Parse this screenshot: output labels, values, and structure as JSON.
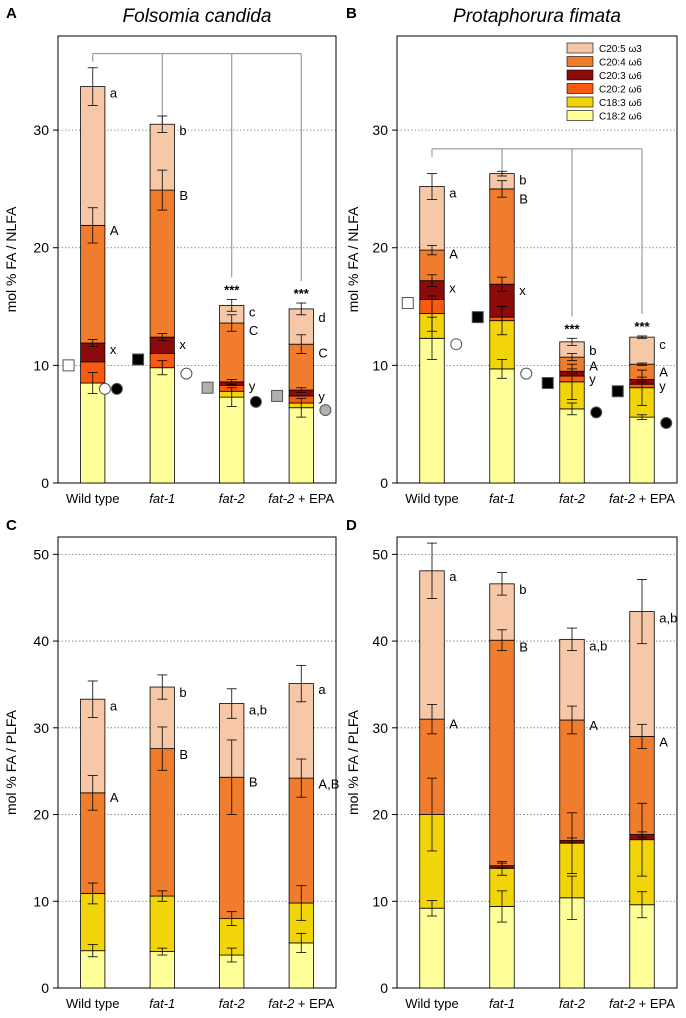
{
  "colors": {
    "C18:2": "#ffff99",
    "C18:3": "#f2d40a",
    "C20:2": "#f95a12",
    "C20:3": "#8b0a0a",
    "C20:4": "#ef7d2d",
    "C20:5": "#f6c8a8",
    "marker_white": "#ffffff",
    "marker_black": "#000000",
    "marker_grey": "#b0b0b0"
  },
  "legend": [
    {
      "key": "C20:5",
      "label": "C20:5 ω3"
    },
    {
      "key": "C20:4",
      "label": "C20:4 ω6"
    },
    {
      "key": "C20:3",
      "label": "C20:3 ω6"
    },
    {
      "key": "C20:2",
      "label": "C20:2 ω6"
    },
    {
      "key": "C18:3",
      "label": "C18:3 ω6"
    },
    {
      "key": "C18:2",
      "label": "C18:2 ω6"
    }
  ],
  "chart_data": [
    {
      "panel": "A",
      "type": "bar",
      "stacked": true,
      "title": "Folsomia candida",
      "ylabel": "mol % FA / NLFA",
      "ylim": [
        0,
        38
      ],
      "yticks": [
        0,
        10,
        20,
        30
      ],
      "categories": [
        {
          "italic": "",
          "plain": "Wild type"
        },
        {
          "italic": "fat-1",
          "plain": ""
        },
        {
          "italic": "fat-2",
          "plain": ""
        },
        {
          "italic": "fat-2",
          "plain": " + EPA"
        }
      ],
      "series": [
        {
          "name": "C18:2",
          "values": [
            8.5,
            9.8,
            7.3,
            6.4
          ],
          "errors": [
            0.9,
            0.6,
            0.8,
            0.8
          ]
        },
        {
          "name": "C18:3",
          "values": [
            0,
            0,
            0.5,
            0.4
          ],
          "errors": [
            0,
            0,
            0,
            0
          ]
        },
        {
          "name": "C20:2",
          "values": [
            1.8,
            1.2,
            0.5,
            0.6
          ],
          "errors": [
            0,
            0,
            0,
            0
          ]
        },
        {
          "name": "C20:3",
          "values": [
            1.6,
            1.4,
            0.3,
            0.5
          ],
          "errors": [
            0.3,
            0.3,
            0.2,
            0.2
          ]
        },
        {
          "name": "C20:4",
          "values": [
            10.0,
            12.5,
            5.0,
            3.9
          ],
          "errors": [
            1.5,
            1.7,
            0.7,
            0.8
          ]
        },
        {
          "name": "C20:5",
          "values": [
            11.8,
            5.6,
            1.5,
            3.0
          ],
          "errors": [
            1.6,
            0.7,
            0.5,
            0.5
          ]
        }
      ],
      "letters": [
        [
          {
            "t": "a",
            "y": 33.2
          },
          {
            "t": "A",
            "y": 21.5
          },
          {
            "t": "x",
            "y": 11.4
          }
        ],
        [
          {
            "t": "b",
            "y": 30.0
          },
          {
            "t": "B",
            "y": 24.5
          },
          {
            "t": "x",
            "y": 11.8
          }
        ],
        [
          {
            "t": "c",
            "y": 14.6
          },
          {
            "t": "C",
            "y": 13.0
          },
          {
            "t": "y",
            "y": 8.3
          }
        ],
        [
          {
            "t": "d",
            "y": 14.1
          },
          {
            "t": "C",
            "y": 11.1
          },
          {
            "t": "y",
            "y": 7.4
          }
        ]
      ],
      "stars": [
        "",
        "",
        "***",
        "***"
      ],
      "markers": [
        {
          "cat": 0,
          "side": "left",
          "shape": "square",
          "fill": "white",
          "y": 10.0
        },
        {
          "cat": 0,
          "side": "right",
          "shape": "circle",
          "fill": "white",
          "y": 8.0,
          "dx": -12
        },
        {
          "cat": 0,
          "side": "right",
          "shape": "circle",
          "fill": "black",
          "y": 8.0
        },
        {
          "cat": 1,
          "side": "left",
          "shape": "square",
          "fill": "black",
          "y": 10.5
        },
        {
          "cat": 1,
          "side": "right",
          "shape": "circle",
          "fill": "white",
          "y": 9.3
        },
        {
          "cat": 2,
          "side": "left",
          "shape": "square",
          "fill": "grey",
          "y": 8.1
        },
        {
          "cat": 2,
          "side": "right",
          "shape": "circle",
          "fill": "black",
          "y": 6.9
        },
        {
          "cat": 3,
          "side": "left",
          "shape": "square",
          "fill": "grey",
          "y": 7.4
        },
        {
          "cat": 3,
          "side": "right",
          "shape": "circle",
          "fill": "grey",
          "y": 6.2
        }
      ],
      "bracket": {
        "y": 36.5,
        "from": 0,
        "to": [
          1,
          2,
          3
        ]
      }
    },
    {
      "panel": "B",
      "type": "bar",
      "stacked": true,
      "title": "Protaphorura fimata",
      "ylabel": "mol % FA / NLFA",
      "ylim": [
        0,
        38
      ],
      "yticks": [
        0,
        10,
        20,
        30
      ],
      "show_legend": true,
      "categories": [
        {
          "italic": "",
          "plain": "Wild type"
        },
        {
          "italic": "fat-1",
          "plain": ""
        },
        {
          "italic": "fat-2",
          "plain": ""
        },
        {
          "italic": "fat-2",
          "plain": " + EPA"
        }
      ],
      "series": [
        {
          "name": "C18:2",
          "values": [
            12.3,
            9.7,
            6.3,
            5.6
          ],
          "errors": [
            1.8,
            0.8,
            0.5,
            0.2
          ]
        },
        {
          "name": "C18:3",
          "values": [
            2.1,
            4.1,
            2.3,
            2.5
          ],
          "errors": [
            1.5,
            1.2,
            1.5,
            1.5
          ]
        },
        {
          "name": "C20:2",
          "values": [
            1.2,
            0.3,
            0.5,
            0.3
          ],
          "errors": [
            0,
            0,
            0,
            0
          ]
        },
        {
          "name": "C20:3",
          "values": [
            1.6,
            2.8,
            0.4,
            0.4
          ],
          "errors": [
            0.5,
            0.6,
            0.2,
            0.2
          ]
        },
        {
          "name": "C20:4",
          "values": [
            2.6,
            8.1,
            1.2,
            1.3
          ],
          "errors": [
            0.4,
            0.7,
            0.3,
            0.1
          ]
        },
        {
          "name": "C20:5",
          "values": [
            5.4,
            1.3,
            1.3,
            2.3
          ],
          "errors": [
            1.1,
            0.2,
            0.3,
            0.1
          ]
        }
      ],
      "letters": [
        [
          {
            "t": "a",
            "y": 24.7
          },
          {
            "t": "A",
            "y": 19.5
          },
          {
            "t": "x",
            "y": 16.6
          }
        ],
        [
          {
            "t": "b",
            "y": 25.8
          },
          {
            "t": "B",
            "y": 24.2
          },
          {
            "t": "x",
            "y": 16.4
          }
        ],
        [
          {
            "t": "b",
            "y": 11.3
          },
          {
            "t": "A",
            "y": 10.0
          },
          {
            "t": "y",
            "y": 8.9
          }
        ],
        [
          {
            "t": "c",
            "y": 11.8
          },
          {
            "t": "A",
            "y": 9.5
          },
          {
            "t": "y",
            "y": 8.3
          }
        ]
      ],
      "stars": [
        "",
        "",
        "***",
        "***"
      ],
      "markers": [
        {
          "cat": 0,
          "side": "left",
          "shape": "square",
          "fill": "white",
          "y": 15.3
        },
        {
          "cat": 0,
          "side": "right",
          "shape": "circle",
          "fill": "white",
          "y": 11.8
        },
        {
          "cat": 1,
          "side": "left",
          "shape": "square",
          "fill": "black",
          "y": 14.1
        },
        {
          "cat": 1,
          "side": "right",
          "shape": "circle",
          "fill": "white",
          "y": 9.3
        },
        {
          "cat": 2,
          "side": "left",
          "shape": "square",
          "fill": "black",
          "y": 8.5
        },
        {
          "cat": 2,
          "side": "right",
          "shape": "circle",
          "fill": "black",
          "y": 6.0
        },
        {
          "cat": 3,
          "side": "left",
          "shape": "square",
          "fill": "black",
          "y": 7.8
        },
        {
          "cat": 3,
          "side": "right",
          "shape": "circle",
          "fill": "black",
          "y": 5.1
        }
      ],
      "bracket": {
        "y": 28.4,
        "from": 0,
        "to": [
          1,
          2,
          3
        ]
      }
    },
    {
      "panel": "C",
      "type": "bar",
      "stacked": true,
      "title": "",
      "ylabel": "mol % FA / PLFA",
      "ylim": [
        0,
        52
      ],
      "yticks": [
        0,
        10,
        20,
        30,
        40,
        50
      ],
      "categories": [
        {
          "italic": "",
          "plain": "Wild type"
        },
        {
          "italic": "fat-1",
          "plain": ""
        },
        {
          "italic": "fat-2",
          "plain": ""
        },
        {
          "italic": "fat-2",
          "plain": " + EPA"
        }
      ],
      "series": [
        {
          "name": "C18:2",
          "values": [
            4.3,
            4.2,
            3.8,
            5.2
          ],
          "errors": [
            0.7,
            0.4,
            0.8,
            1.1
          ]
        },
        {
          "name": "C18:3",
          "values": [
            6.6,
            6.4,
            4.2,
            4.6
          ],
          "errors": [
            1.2,
            0.6,
            0.8,
            2.0
          ]
        },
        {
          "name": "C20:2",
          "values": [
            0,
            0,
            0,
            0
          ],
          "errors": [
            0,
            0,
            0,
            0
          ]
        },
        {
          "name": "C20:3",
          "values": [
            0,
            0,
            0,
            0
          ],
          "errors": [
            0,
            0,
            0,
            0
          ]
        },
        {
          "name": "C20:4",
          "values": [
            11.6,
            17.0,
            16.3,
            14.4
          ],
          "errors": [
            2.0,
            2.5,
            4.3,
            2.2
          ]
        },
        {
          "name": "C20:5",
          "values": [
            10.8,
            7.1,
            8.5,
            10.9
          ],
          "errors": [
            2.1,
            1.4,
            1.7,
            2.1
          ]
        }
      ],
      "letters": [
        [
          {
            "t": "a",
            "y": 32.6
          },
          {
            "t": "A",
            "y": 22.0
          }
        ],
        [
          {
            "t": "b",
            "y": 34.1
          },
          {
            "t": "B",
            "y": 27.0
          }
        ],
        [
          {
            "t": "a,b",
            "y": 32.1
          },
          {
            "t": "B",
            "y": 23.8
          }
        ],
        [
          {
            "t": "a",
            "y": 34.5
          },
          {
            "t": "A,B",
            "y": 23.6
          }
        ]
      ]
    },
    {
      "panel": "D",
      "type": "bar",
      "stacked": true,
      "title": "",
      "ylabel": "mol % FA / PLFA",
      "ylim": [
        0,
        52
      ],
      "yticks": [
        0,
        10,
        20,
        30,
        40,
        50
      ],
      "categories": [
        {
          "italic": "",
          "plain": "Wild type"
        },
        {
          "italic": "fat-1",
          "plain": ""
        },
        {
          "italic": "fat-2",
          "plain": ""
        },
        {
          "italic": "fat-2",
          "plain": " + EPA"
        }
      ],
      "series": [
        {
          "name": "C18:2",
          "values": [
            9.2,
            9.4,
            10.4,
            9.6
          ],
          "errors": [
            0.9,
            1.8,
            2.5,
            1.5
          ]
        },
        {
          "name": "C18:3",
          "values": [
            10.8,
            4.4,
            6.3,
            7.5
          ],
          "errors": [
            4.2,
            0.8,
            3.5,
            4.2
          ]
        },
        {
          "name": "C20:2",
          "values": [
            0,
            0,
            0,
            0
          ],
          "errors": [
            0,
            0,
            0,
            0
          ]
        },
        {
          "name": "C20:3",
          "values": [
            0,
            0.3,
            0.3,
            0.6
          ],
          "errors": [
            0,
            0.3,
            0.3,
            0.3
          ]
        },
        {
          "name": "C20:4",
          "values": [
            11.0,
            26.0,
            13.9,
            11.3
          ],
          "errors": [
            1.7,
            1.2,
            1.6,
            1.4
          ]
        },
        {
          "name": "C20:5",
          "values": [
            17.1,
            6.5,
            9.3,
            14.4
          ],
          "errors": [
            3.2,
            1.3,
            1.3,
            3.7
          ]
        }
      ],
      "letters": [
        [
          {
            "t": "a",
            "y": 47.5
          },
          {
            "t": "A",
            "y": 30.5
          }
        ],
        [
          {
            "t": "b",
            "y": 46.0
          },
          {
            "t": "B",
            "y": 39.4
          }
        ],
        [
          {
            "t": "a,b",
            "y": 39.5
          },
          {
            "t": "A",
            "y": 30.3
          }
        ],
        [
          {
            "t": "a,b",
            "y": 42.7
          },
          {
            "t": "A",
            "y": 28.4
          }
        ]
      ]
    }
  ]
}
